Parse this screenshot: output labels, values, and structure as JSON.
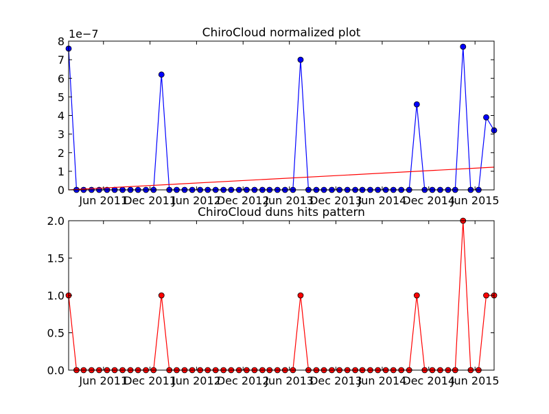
{
  "chart_data": [
    {
      "type": "line",
      "title": "ChiroCloud normalized plot",
      "offset_label": "1e−7",
      "xlabel": "",
      "ylabel": "",
      "ylim": [
        0,
        8
      ],
      "yticks": [
        "0",
        "1",
        "2",
        "3",
        "4",
        "5",
        "6",
        "7",
        "8"
      ],
      "xlim": [
        "2011-01-15",
        "2015-08-15"
      ],
      "xticks": [
        {
          "date": "2011-06-01",
          "label": "Jun 2011"
        },
        {
          "date": "2011-12-01",
          "label": "Dec 2011"
        },
        {
          "date": "2012-06-01",
          "label": "Jun 2012"
        },
        {
          "date": "2012-12-01",
          "label": "Dec 2012"
        },
        {
          "date": "2013-06-01",
          "label": "Jun 2013"
        },
        {
          "date": "2013-12-01",
          "label": "Dec 2013"
        },
        {
          "date": "2014-06-01",
          "label": "Jun 2014"
        },
        {
          "date": "2014-12-01",
          "label": "Dec 2014"
        },
        {
          "date": "2015-06-01",
          "label": "Jun 2015"
        }
      ],
      "grid": false,
      "legend": "none",
      "series": [
        {
          "color": "#0000ff",
          "marker": "circle",
          "x": [
            "2011-01-15",
            "2011-02-15",
            "2011-03-15",
            "2011-04-15",
            "2011-05-15",
            "2011-06-15",
            "2011-07-15",
            "2011-08-15",
            "2011-09-15",
            "2011-10-15",
            "2011-11-15",
            "2011-12-15",
            "2012-01-15",
            "2012-02-15",
            "2012-03-15",
            "2012-04-15",
            "2012-05-15",
            "2012-06-15",
            "2012-07-15",
            "2012-08-15",
            "2012-09-15",
            "2012-10-15",
            "2012-11-15",
            "2012-12-15",
            "2013-01-15",
            "2013-02-15",
            "2013-03-15",
            "2013-04-15",
            "2013-05-15",
            "2013-06-15",
            "2013-07-15",
            "2013-08-15",
            "2013-09-15",
            "2013-10-15",
            "2013-11-15",
            "2013-12-15",
            "2014-01-15",
            "2014-02-15",
            "2014-03-15",
            "2014-04-15",
            "2014-05-15",
            "2014-06-15",
            "2014-07-15",
            "2014-08-15",
            "2014-09-15",
            "2014-10-15",
            "2014-11-15",
            "2014-12-15",
            "2015-01-15",
            "2015-02-15",
            "2015-03-15",
            "2015-04-15",
            "2015-05-15",
            "2015-06-15",
            "2015-07-15",
            "2015-08-15"
          ],
          "y": [
            7.6,
            0,
            0,
            0,
            0,
            0,
            0,
            0,
            0,
            0,
            0,
            0,
            6.2,
            0,
            0,
            0,
            0,
            0,
            0,
            0,
            0,
            0,
            0,
            0,
            0,
            0,
            0,
            0,
            0,
            0,
            7.0,
            0,
            0,
            0,
            0,
            0,
            0,
            0,
            0,
            0,
            0,
            0,
            0,
            0,
            0,
            4.6,
            0,
            0,
            0,
            0,
            0,
            7.7,
            0,
            0,
            3.9,
            3.2
          ]
        },
        {
          "color": "#ff0000",
          "marker": "none",
          "x": [
            "2011-01-15",
            "2015-08-15"
          ],
          "y": [
            0.0,
            1.22
          ]
        }
      ]
    },
    {
      "type": "line",
      "title": "ChiroCloud duns hits pattern",
      "xlabel": "",
      "ylabel": "",
      "ylim": [
        0,
        2
      ],
      "yticks": [
        "0.0",
        "0.5",
        "1.0",
        "1.5",
        "2.0"
      ],
      "xlim": [
        "2011-01-15",
        "2015-08-15"
      ],
      "xticks": [
        {
          "date": "2011-06-01",
          "label": "Jun 2011"
        },
        {
          "date": "2011-12-01",
          "label": "Dec 2011"
        },
        {
          "date": "2012-06-01",
          "label": "Jun 2012"
        },
        {
          "date": "2012-12-01",
          "label": "Dec 2012"
        },
        {
          "date": "2013-06-01",
          "label": "Jun 2013"
        },
        {
          "date": "2013-12-01",
          "label": "Dec 2013"
        },
        {
          "date": "2014-06-01",
          "label": "Jun 2014"
        },
        {
          "date": "2014-12-01",
          "label": "Dec 2014"
        },
        {
          "date": "2015-06-01",
          "label": "Jun 2015"
        }
      ],
      "grid": false,
      "legend": "none",
      "series": [
        {
          "color": "#ff0000",
          "marker": "circle",
          "x": [
            "2011-01-15",
            "2011-02-15",
            "2011-03-15",
            "2011-04-15",
            "2011-05-15",
            "2011-06-15",
            "2011-07-15",
            "2011-08-15",
            "2011-09-15",
            "2011-10-15",
            "2011-11-15",
            "2011-12-15",
            "2012-01-15",
            "2012-02-15",
            "2012-03-15",
            "2012-04-15",
            "2012-05-15",
            "2012-06-15",
            "2012-07-15",
            "2012-08-15",
            "2012-09-15",
            "2012-10-15",
            "2012-11-15",
            "2012-12-15",
            "2013-01-15",
            "2013-02-15",
            "2013-03-15",
            "2013-04-15",
            "2013-05-15",
            "2013-06-15",
            "2013-07-15",
            "2013-08-15",
            "2013-09-15",
            "2013-10-15",
            "2013-11-15",
            "2013-12-15",
            "2014-01-15",
            "2014-02-15",
            "2014-03-15",
            "2014-04-15",
            "2014-05-15",
            "2014-06-15",
            "2014-07-15",
            "2014-08-15",
            "2014-09-15",
            "2014-10-15",
            "2014-11-15",
            "2014-12-15",
            "2015-01-15",
            "2015-02-15",
            "2015-03-15",
            "2015-04-15",
            "2015-05-15",
            "2015-06-15",
            "2015-07-15",
            "2015-08-15"
          ],
          "y": [
            1,
            0,
            0,
            0,
            0,
            0,
            0,
            0,
            0,
            0,
            0,
            0,
            1,
            0,
            0,
            0,
            0,
            0,
            0,
            0,
            0,
            0,
            0,
            0,
            0,
            0,
            0,
            0,
            0,
            0,
            1,
            0,
            0,
            0,
            0,
            0,
            0,
            0,
            0,
            0,
            0,
            0,
            0,
            0,
            0,
            1,
            0,
            0,
            0,
            0,
            0,
            2,
            0,
            0,
            1,
            1
          ]
        }
      ]
    }
  ]
}
